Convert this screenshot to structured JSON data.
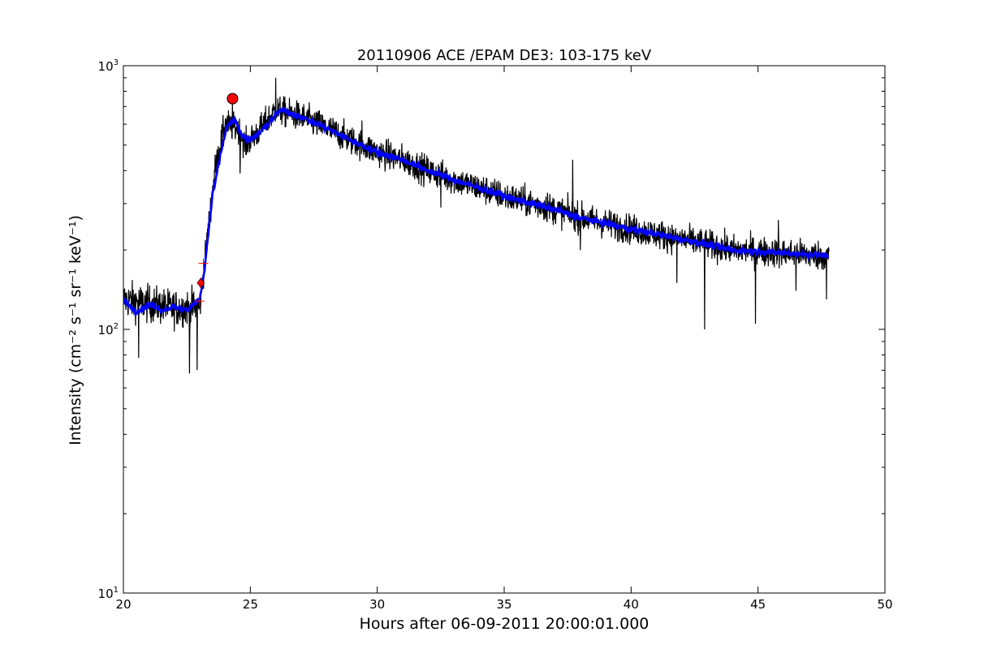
{
  "chart_data": {
    "type": "line",
    "title": "20110906 ACE /EPAM DE3: 103-175 keV",
    "xlabel": "Hours after 06-09-2011 20:00:01.000",
    "ylabel": "Intensity (cm⁻² s⁻¹ sr⁻¹ keV⁻¹)",
    "xlim": [
      20,
      50
    ],
    "ylim": [
      10,
      1000
    ],
    "yscale": "log",
    "grid": false,
    "x_ticks": [
      "20",
      "25",
      "30",
      "35",
      "40",
      "45",
      "50"
    ],
    "y_ticks": [
      {
        "base": "10",
        "exp": "1"
      },
      {
        "base": "10",
        "exp": "2"
      },
      {
        "base": "10",
        "exp": "3"
      }
    ],
    "series": [
      {
        "color": "#000000",
        "style": "raw-noisy",
        "envelope": [
          [
            20.0,
            130
          ],
          [
            22.0,
            120
          ],
          [
            23.0,
            122
          ],
          [
            23.2,
            180
          ],
          [
            23.6,
            400
          ],
          [
            24.0,
            600
          ],
          [
            24.5,
            580
          ],
          [
            24.8,
            500
          ],
          [
            25.3,
            560
          ],
          [
            26.0,
            680
          ],
          [
            27.0,
            640
          ],
          [
            28.0,
            580
          ],
          [
            29.0,
            520
          ],
          [
            30.0,
            470
          ],
          [
            31.0,
            440
          ],
          [
            32.0,
            400
          ],
          [
            33.0,
            370
          ],
          [
            35.0,
            320
          ],
          [
            37.0,
            285
          ],
          [
            38.0,
            265
          ],
          [
            40.0,
            240
          ],
          [
            42.0,
            220
          ],
          [
            44.0,
            200
          ],
          [
            46.0,
            195
          ],
          [
            47.8,
            190
          ]
        ],
        "dips": [
          [
            20.6,
            78
          ],
          [
            22.6,
            68
          ],
          [
            22.9,
            70
          ],
          [
            24.6,
            390
          ],
          [
            32.5,
            290
          ],
          [
            38.0,
            200
          ],
          [
            41.8,
            150
          ],
          [
            42.9,
            100
          ],
          [
            44.9,
            105
          ],
          [
            46.5,
            140
          ],
          [
            47.7,
            130
          ]
        ],
        "spikes": [
          [
            24.3,
            730
          ],
          [
            26.0,
            900
          ],
          [
            29.4,
            620
          ],
          [
            36.7,
            330
          ],
          [
            37.7,
            440
          ],
          [
            45.8,
            260
          ]
        ]
      },
      {
        "color": "#0000ff",
        "style": "smoothed",
        "envelope": [
          [
            20.0,
            130
          ],
          [
            20.5,
            115
          ],
          [
            21.0,
            125
          ],
          [
            21.5,
            118
          ],
          [
            22.0,
            122
          ],
          [
            22.5,
            118
          ],
          [
            23.0,
            130
          ],
          [
            23.2,
            170
          ],
          [
            23.5,
            320
          ],
          [
            23.8,
            450
          ],
          [
            24.1,
            600
          ],
          [
            24.4,
            620
          ],
          [
            24.7,
            540
          ],
          [
            25.0,
            520
          ],
          [
            25.4,
            560
          ],
          [
            25.8,
            620
          ],
          [
            26.2,
            680
          ],
          [
            27.0,
            640
          ],
          [
            28.0,
            580
          ],
          [
            29.0,
            520
          ],
          [
            30.0,
            470
          ],
          [
            31.0,
            440
          ],
          [
            32.0,
            400
          ],
          [
            33.0,
            370
          ],
          [
            35.0,
            320
          ],
          [
            37.0,
            285
          ],
          [
            38.0,
            265
          ],
          [
            40.0,
            240
          ],
          [
            42.0,
            220
          ],
          [
            44.0,
            200
          ],
          [
            46.0,
            195
          ],
          [
            47.8,
            190
          ]
        ]
      }
    ],
    "markers": [
      {
        "shape": "circle",
        "color": "#ff0000",
        "x": 24.3,
        "y": 750
      },
      {
        "shape": "diamond",
        "color": "#ff0000",
        "x": 23.05,
        "y": 150
      },
      {
        "shape": "plus",
        "color": "#ff0000",
        "x": 23.0,
        "y": 128
      },
      {
        "shape": "plus",
        "color": "#ff0000",
        "x": 23.15,
        "y": 178
      }
    ]
  }
}
